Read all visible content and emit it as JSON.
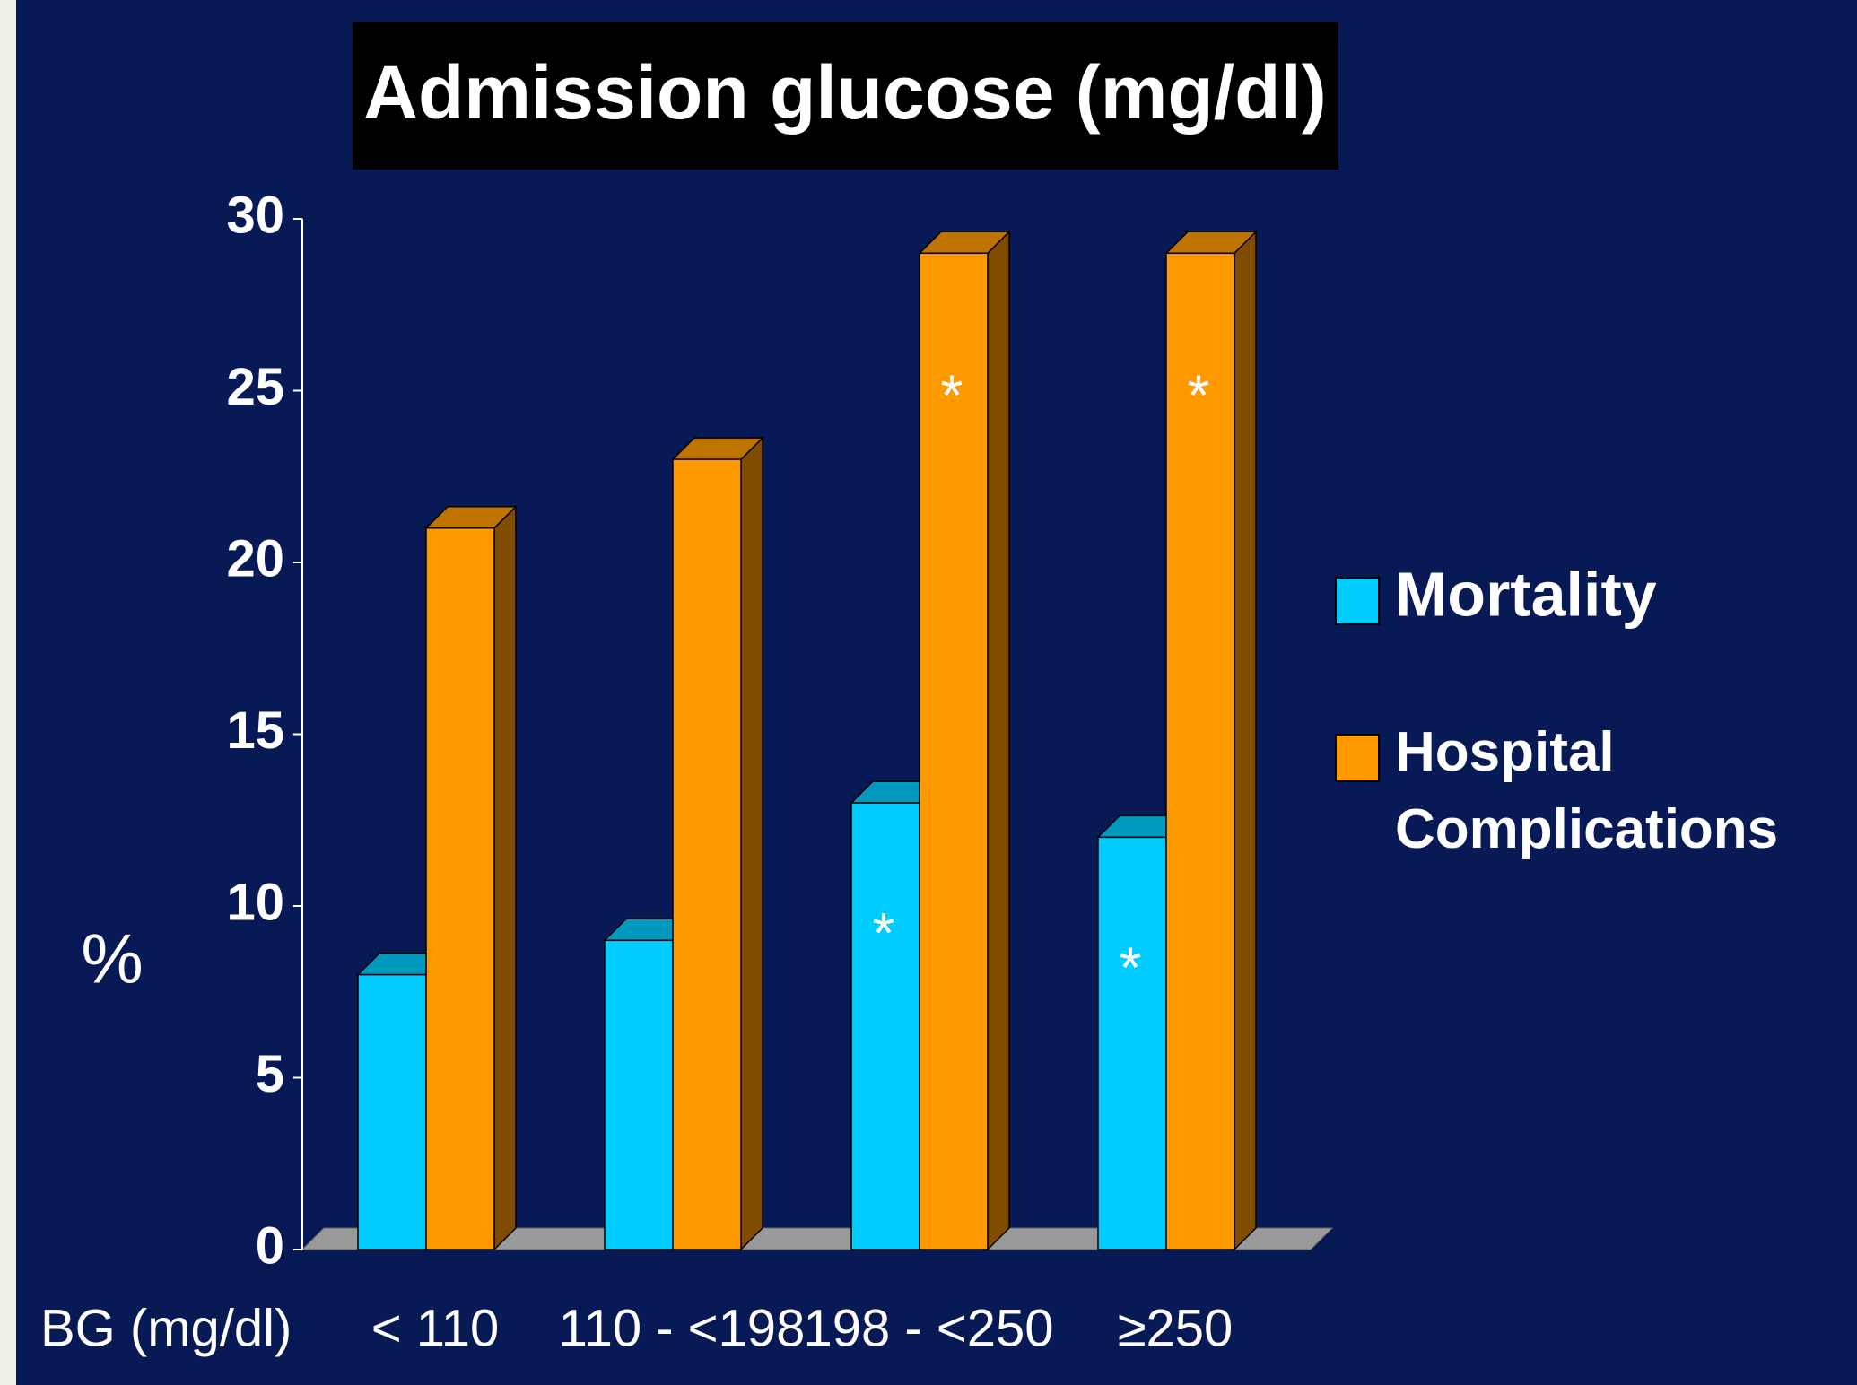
{
  "chart_data": {
    "type": "bar3d",
    "title": "Admission glucose (mg/dl)",
    "x_label": "BG (mg/dl)",
    "y_label": "%",
    "categories": [
      "< 110",
      "110 - <198",
      "198 - <250",
      "≥250"
    ],
    "series": [
      {
        "name": "Mortality",
        "color": "#00ccff",
        "values": [
          8,
          9,
          13,
          12
        ],
        "annotations": [
          null,
          null,
          "*",
          "*"
        ]
      },
      {
        "name": "Hospital Complications",
        "color": "#ff9900",
        "values": [
          21,
          23,
          29,
          29
        ],
        "annotations": [
          null,
          null,
          "*",
          "*"
        ]
      }
    ],
    "ylim": [
      0,
      30
    ],
    "yticks": [
      0,
      5,
      10,
      15,
      20,
      25,
      30
    ],
    "legend": "right"
  }
}
